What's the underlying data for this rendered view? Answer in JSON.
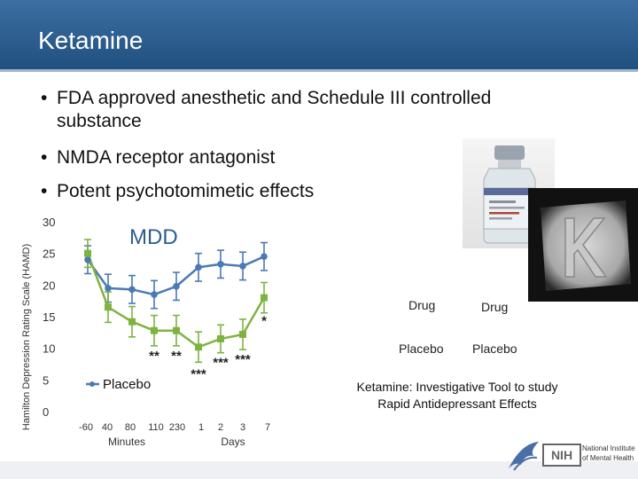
{
  "header": {
    "title": "Ketamine"
  },
  "bullets": [
    {
      "line1": "FDA approved anesthetic and Schedule III controlled",
      "line2": "substance"
    },
    {
      "line1": "NMDA receptor antagonist"
    },
    {
      "line1": "Potent psychotomimetic effects"
    }
  ],
  "bullet_glyph": "•",
  "legend": {
    "drug1": "Drug",
    "drug2": "Drug",
    "placebo1": "Placebo",
    "placebo2": "Placebo"
  },
  "caption": {
    "line1": "Ketamine: Investigative Tool to study",
    "line2": "Rapid Antidepressant Effects"
  },
  "footer": {
    "nih": "NIH",
    "institute_line1": "National Institute",
    "institute_line2": "of Mental Health"
  },
  "colors": {
    "header": "#2c5d8f",
    "placebo": "#4a7ab5",
    "drug": "#7fb341"
  },
  "chart_data": {
    "type": "line",
    "panel_label": "MDD",
    "ylabel": "Hamilton Depression Rating Scale (HAMD)",
    "ylim": [
      0,
      30
    ],
    "y_ticks": [
      0,
      5,
      10,
      15,
      20,
      25,
      30
    ],
    "x_ticks": [
      "-60",
      "40",
      "80",
      "110",
      "230",
      "1",
      "2",
      "3",
      "7"
    ],
    "minutes_label": "Minutes",
    "days_label": "Days",
    "series": [
      {
        "name": "Placebo",
        "values": [
          24.0,
          19.5,
          19.3,
          18.5,
          19.8,
          22.8,
          23.3,
          23.0,
          24.5
        ],
        "error": [
          2.2,
          2.2,
          2.2,
          2.2,
          2.2,
          2.2,
          2.2,
          2.2,
          2.2
        ]
      },
      {
        "name": "",
        "values": [
          25.0,
          16.5,
          14.2,
          12.8,
          12.8,
          10.2,
          11.5,
          12.2,
          18.0
        ],
        "error": [
          2.2,
          2.4,
          2.4,
          2.4,
          2.4,
          2.4,
          2.2,
          2.4,
          2.4
        ]
      }
    ],
    "significance": [
      {
        "index": 3,
        "label": "**"
      },
      {
        "index": 4,
        "label": "**"
      },
      {
        "index": 5,
        "label": "***"
      },
      {
        "index": 6,
        "label": "***"
      },
      {
        "index": 7,
        "label": "***"
      },
      {
        "index": 8,
        "label": "*"
      }
    ]
  }
}
